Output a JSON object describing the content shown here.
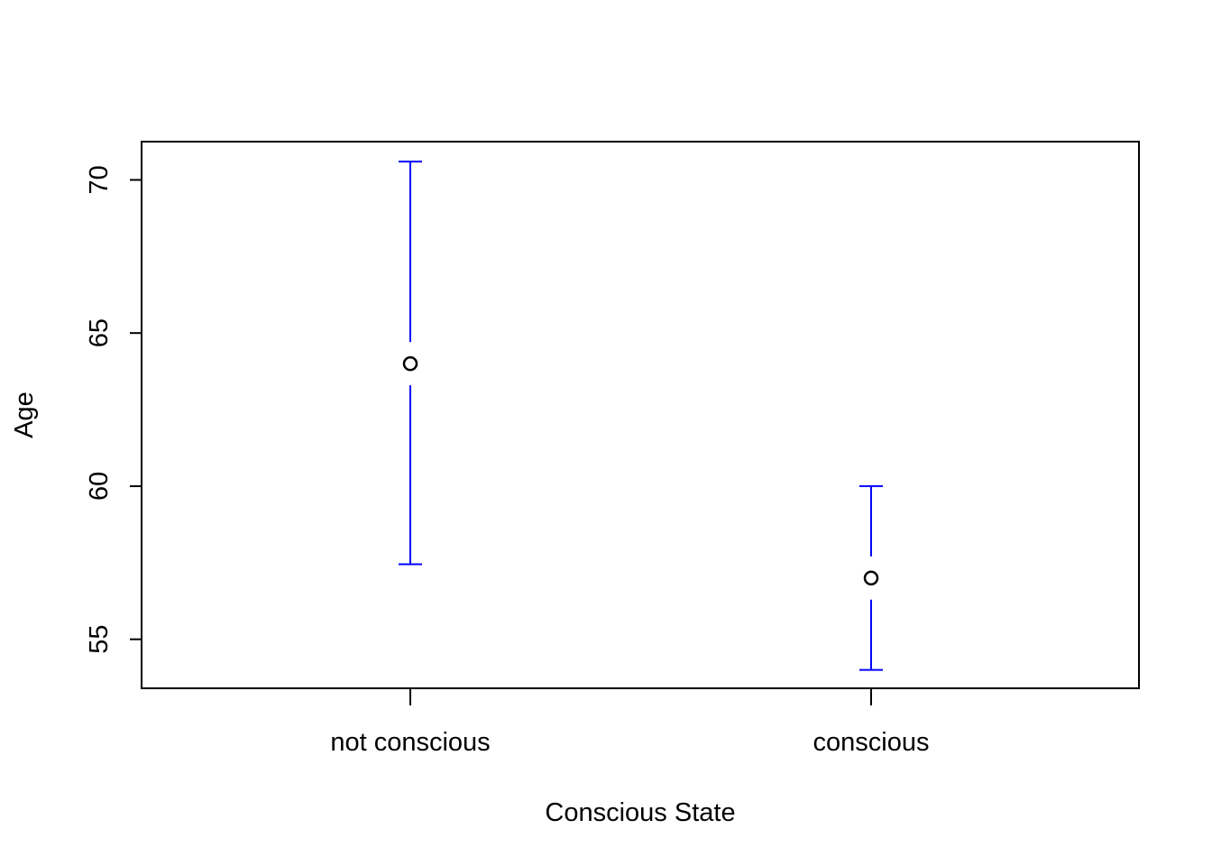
{
  "chart_data": {
    "type": "scatter",
    "title": "",
    "xlabel": "Conscious State",
    "ylabel": "Age",
    "categories": [
      "not conscious",
      "conscious"
    ],
    "points": [
      {
        "category": "not conscious",
        "mean": 64.0,
        "lower": 57.45,
        "upper": 70.6
      },
      {
        "category": "conscious",
        "mean": 57.0,
        "lower": 54.0,
        "upper": 60.0
      }
    ],
    "ylim": [
      53.4,
      71.25
    ],
    "yticks": [
      55,
      60,
      65,
      70
    ],
    "grid": false,
    "legend": "none",
    "colors": {
      "errorbar": "#0000ff",
      "point": "#000000",
      "axis": "#000000"
    }
  }
}
